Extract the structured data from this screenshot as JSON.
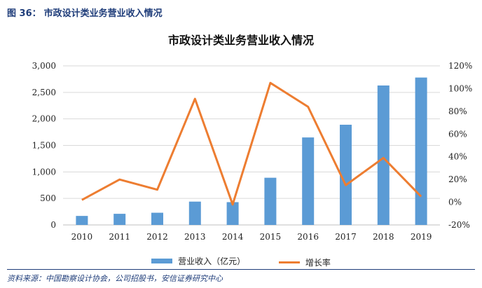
{
  "figure": {
    "label": "图 36：",
    "caption": "市政设计类业务营业收入情况"
  },
  "source": "资料来源：中国勘察设计协会，公司招股书，安信证券研究中心",
  "colors": {
    "bar": "#5b9bd5",
    "line": "#ed7d31",
    "grid": "#d9d9d9",
    "caption": "#1f3d7a"
  },
  "chart_data": {
    "type": "bar",
    "title": "市政设计类业务营业收入情况",
    "categories": [
      "2010",
      "2011",
      "2012",
      "2013",
      "2014",
      "2015",
      "2016",
      "2017",
      "2018",
      "2019"
    ],
    "series": [
      {
        "name": "营业收入（亿元）",
        "type": "bar",
        "axis": "left",
        "values": [
          170,
          210,
          230,
          440,
          430,
          890,
          1650,
          1890,
          2630,
          2780
        ]
      },
      {
        "name": "增长率",
        "type": "line",
        "axis": "right",
        "values": [
          2,
          20,
          11,
          91,
          -2,
          105,
          84,
          15,
          39,
          5
        ]
      }
    ],
    "left_axis": {
      "min": 0,
      "max": 3000,
      "ticks": [
        "0",
        "500",
        "1,000",
        "1,500",
        "2,000",
        "2,500",
        "3,000"
      ]
    },
    "right_axis": {
      "min": -20,
      "max": 120,
      "ticks": [
        "-20%",
        "0%",
        "20%",
        "40%",
        "60%",
        "80%",
        "100%",
        "120%"
      ]
    },
    "grid": true,
    "legend_position": "bottom"
  }
}
